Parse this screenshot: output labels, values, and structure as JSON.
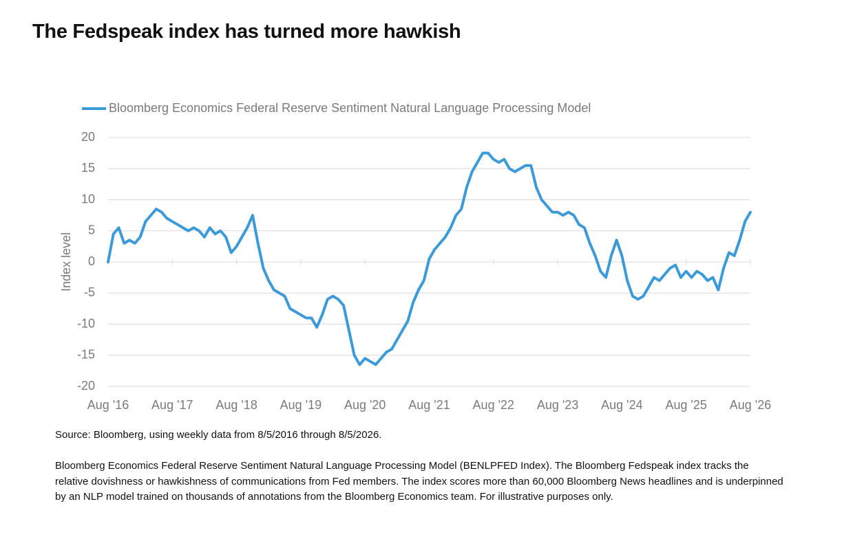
{
  "chart_data": {
    "type": "line",
    "title": "The Fedspeak index has turned more hawkish",
    "y_label": "Index level",
    "source": "Source: Bloomberg, using weekly data from 8/5/2016 through 8/5/2026.",
    "note": "Bloomberg Economics Federal Reserve Sentiment Natural Language Processing Model (BENLPFED Index). The Bloomberg Fedspeak index tracks the relative dovishness or hawkishness of communications from Fed members. The index scores more than 60,000 Bloomberg News headlines and is underpinned by an NLP model trained on thousands of annotations from the Bloomberg Economics team. For illustrative purposes only.",
    "grid": true,
    "legend": "top-left",
    "x": [
      "2016-08",
      "2016-09",
      "2016-10",
      "2016-11",
      "2016-12",
      "2017-01",
      "2017-02",
      "2017-03",
      "2017-04",
      "2017-05",
      "2017-06",
      "2017-07",
      "2017-08",
      "2017-09",
      "2017-10",
      "2017-11",
      "2017-12",
      "2018-01",
      "2018-02",
      "2018-03",
      "2018-04",
      "2018-05",
      "2018-06",
      "2018-07",
      "2018-08",
      "2018-09",
      "2018-10",
      "2018-11",
      "2018-12",
      "2019-01",
      "2019-02",
      "2019-03",
      "2019-04",
      "2019-05",
      "2019-06",
      "2019-07",
      "2019-08",
      "2019-09",
      "2019-10",
      "2019-11",
      "2019-12",
      "2020-01",
      "2020-02",
      "2020-03",
      "2020-04",
      "2020-05",
      "2020-06",
      "2020-07",
      "2020-08",
      "2020-09",
      "2020-10",
      "2020-11",
      "2020-12",
      "2021-01",
      "2021-02",
      "2021-03",
      "2021-04",
      "2021-05",
      "2021-06",
      "2021-07",
      "2021-08",
      "2021-09",
      "2021-10",
      "2021-11",
      "2021-12",
      "2022-01",
      "2022-02",
      "2022-03",
      "2022-04",
      "2022-05",
      "2022-06",
      "2022-07",
      "2022-08",
      "2022-09",
      "2022-10",
      "2022-11",
      "2022-12",
      "2023-01",
      "2023-02",
      "2023-03",
      "2023-04",
      "2023-05",
      "2023-06",
      "2023-07",
      "2023-08",
      "2023-09",
      "2023-10",
      "2023-11",
      "2023-12",
      "2024-01",
      "2024-02",
      "2024-03",
      "2024-04",
      "2024-05",
      "2024-06",
      "2024-07",
      "2024-08",
      "2024-09",
      "2024-10",
      "2024-11",
      "2024-12",
      "2025-01",
      "2025-02",
      "2025-03",
      "2025-04",
      "2025-05",
      "2025-06",
      "2025-07",
      "2025-08",
      "2025-09",
      "2025-10",
      "2025-11",
      "2025-12",
      "2026-01",
      "2026-02",
      "2026-03",
      "2026-04",
      "2026-05",
      "2026-06",
      "2026-07",
      "2026-08"
    ],
    "series": [
      {
        "name": "Bloomberg Economics Federal Reserve Sentiment Natural Language Processing Model",
        "color": "#3d9ad9",
        "values": [
          0,
          4.5,
          5.5,
          3,
          3.5,
          3,
          4,
          6.5,
          7.5,
          8.5,
          8,
          7,
          6.5,
          6,
          5.5,
          5,
          5.5,
          5,
          4,
          5.5,
          4.5,
          5,
          4,
          1.5,
          2.5,
          4,
          5.5,
          7.5,
          3,
          -1,
          -3,
          -4.5,
          -5,
          -5.5,
          -7.5,
          -8,
          -8.5,
          -9,
          -9,
          -10.5,
          -8.5,
          -6,
          -5.5,
          -6,
          -7,
          -11,
          -15,
          -16.5,
          -15.5,
          -16,
          -16.5,
          -15.5,
          -14.5,
          -14,
          -12.5,
          -11,
          -9.5,
          -6.5,
          -4.5,
          -3,
          0.5,
          2,
          3,
          4,
          5.5,
          7.5,
          8.5,
          12,
          14.5,
          16,
          17.5,
          17.5,
          16.5,
          16,
          16.5,
          15,
          14.5,
          15,
          15.5,
          15.5,
          12,
          10,
          9,
          8,
          8,
          7.5,
          8,
          7.5,
          6,
          5.5,
          3,
          1,
          -1.5,
          -2.5,
          1,
          3.5,
          1,
          -3,
          -5.5,
          -6,
          -5.5,
          -4,
          -2.5,
          -3,
          -2,
          -1,
          -0.5,
          -2.5,
          -1.5,
          -2.5,
          -1.5,
          -2,
          -3,
          -2.5,
          -4.5,
          -1,
          1.5,
          1,
          3.5,
          6.5,
          8
        ]
      }
    ],
    "xlim": [
      "2016-08",
      "2026-08"
    ],
    "xticks": [
      {
        "value": "2016-08",
        "label": "Aug '16"
      },
      {
        "value": "2017-08",
        "label": "Aug '17"
      },
      {
        "value": "2018-08",
        "label": "Aug '18"
      },
      {
        "value": "2019-08",
        "label": "Aug '19"
      },
      {
        "value": "2020-08",
        "label": "Aug '20"
      },
      {
        "value": "2021-08",
        "label": "Aug '21"
      },
      {
        "value": "2022-08",
        "label": "Aug '22"
      },
      {
        "value": "2023-08",
        "label": "Aug '23"
      },
      {
        "value": "2024-08",
        "label": "Aug '24"
      },
      {
        "value": "2025-08",
        "label": "Aug '25"
      },
      {
        "value": "2026-08",
        "label": "Aug '26"
      }
    ],
    "ylim": [
      -20,
      20
    ],
    "yticks": [
      20,
      15,
      10,
      5,
      0,
      -5,
      -10,
      -15,
      -20
    ]
  }
}
